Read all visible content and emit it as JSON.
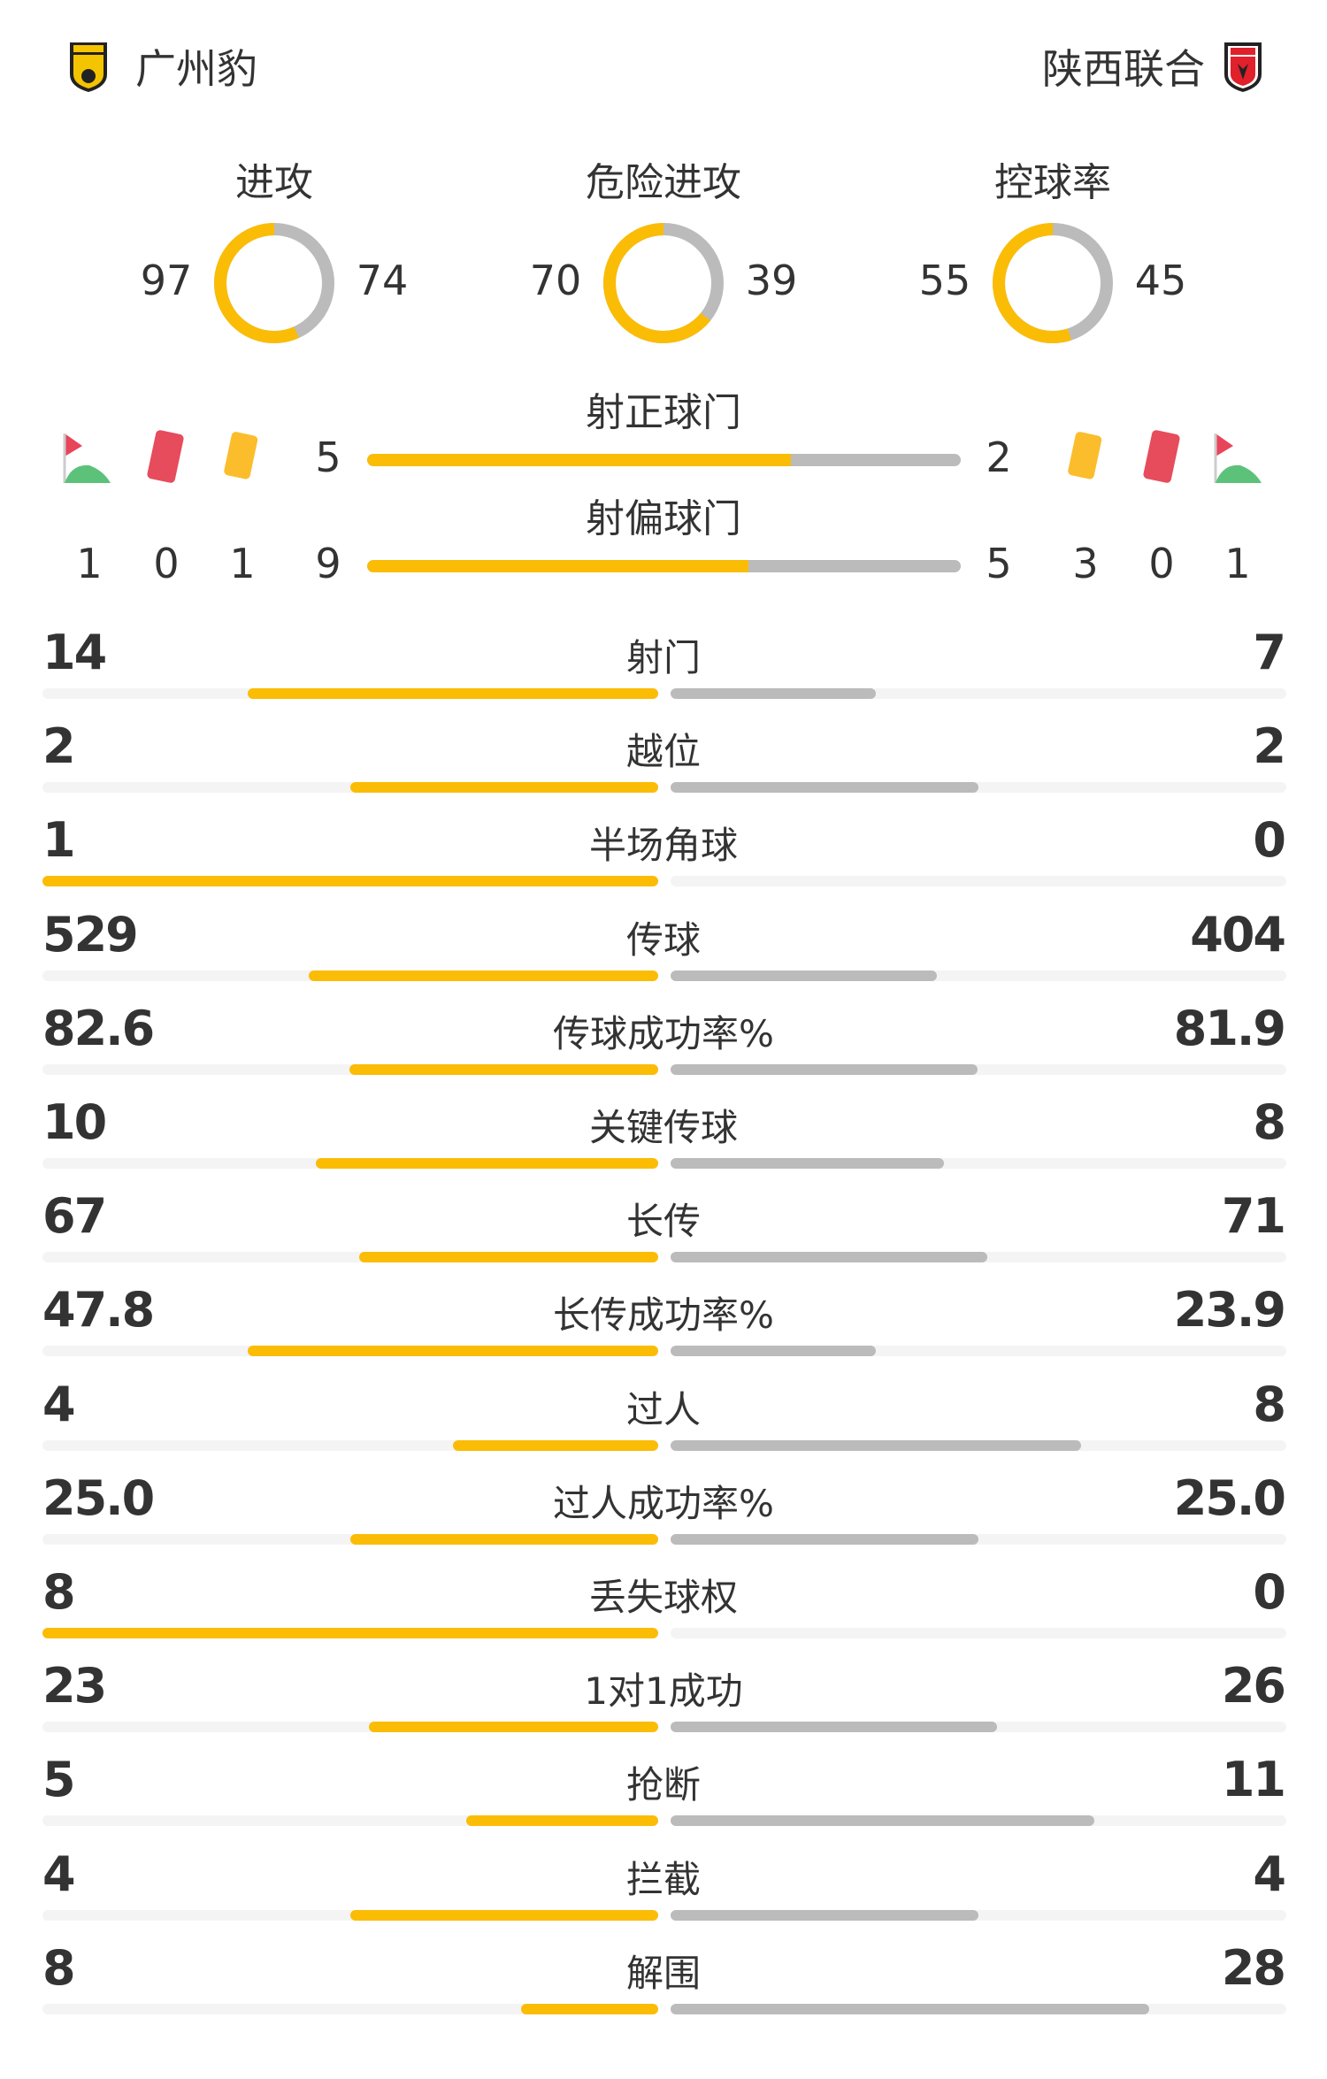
{
  "teams": {
    "home": "广州豹",
    "away": "陕西联合"
  },
  "colors": {
    "home": "#fbbc05",
    "away": "#bbbbbb",
    "track": "#f4f4f4"
  },
  "donuts": [
    {
      "label": "进攻",
      "home": 97,
      "away": 74
    },
    {
      "label": "危险进攻",
      "home": 70,
      "away": 39
    },
    {
      "label": "控球率",
      "home": 55,
      "away": 45
    }
  ],
  "shots_on": {
    "label": "射正球门",
    "home": 5,
    "away": 2
  },
  "shots_off": {
    "label": "射偏球门",
    "home": 9,
    "away": 5
  },
  "home_cards": {
    "corners": 1,
    "red": 0,
    "yellow": 1
  },
  "away_cards": {
    "corners": 1,
    "red": 0,
    "yellow": 3
  },
  "icons": [
    "corner-flag-icon",
    "red-card-icon",
    "yellow-card-icon"
  ],
  "stats": [
    {
      "label": "射门",
      "home": "14",
      "away": "7"
    },
    {
      "label": "越位",
      "home": "2",
      "away": "2"
    },
    {
      "label": "半场角球",
      "home": "1",
      "away": "0"
    },
    {
      "label": "传球",
      "home": "529",
      "away": "404"
    },
    {
      "label": "传球成功率%",
      "home": "82.6",
      "away": "81.9"
    },
    {
      "label": "关键传球",
      "home": "10",
      "away": "8"
    },
    {
      "label": "长传",
      "home": "67",
      "away": "71"
    },
    {
      "label": "长传成功率%",
      "home": "47.8",
      "away": "23.9"
    },
    {
      "label": "过人",
      "home": "4",
      "away": "8"
    },
    {
      "label": "过人成功率%",
      "home": "25.0",
      "away": "25.0"
    },
    {
      "label": "丢失球权",
      "home": "8",
      "away": "0"
    },
    {
      "label": "1对1成功",
      "home": "23",
      "away": "26"
    },
    {
      "label": "抢断",
      "home": "5",
      "away": "11"
    },
    {
      "label": "拦截",
      "home": "4",
      "away": "4"
    },
    {
      "label": "解围",
      "home": "8",
      "away": "28"
    }
  ]
}
